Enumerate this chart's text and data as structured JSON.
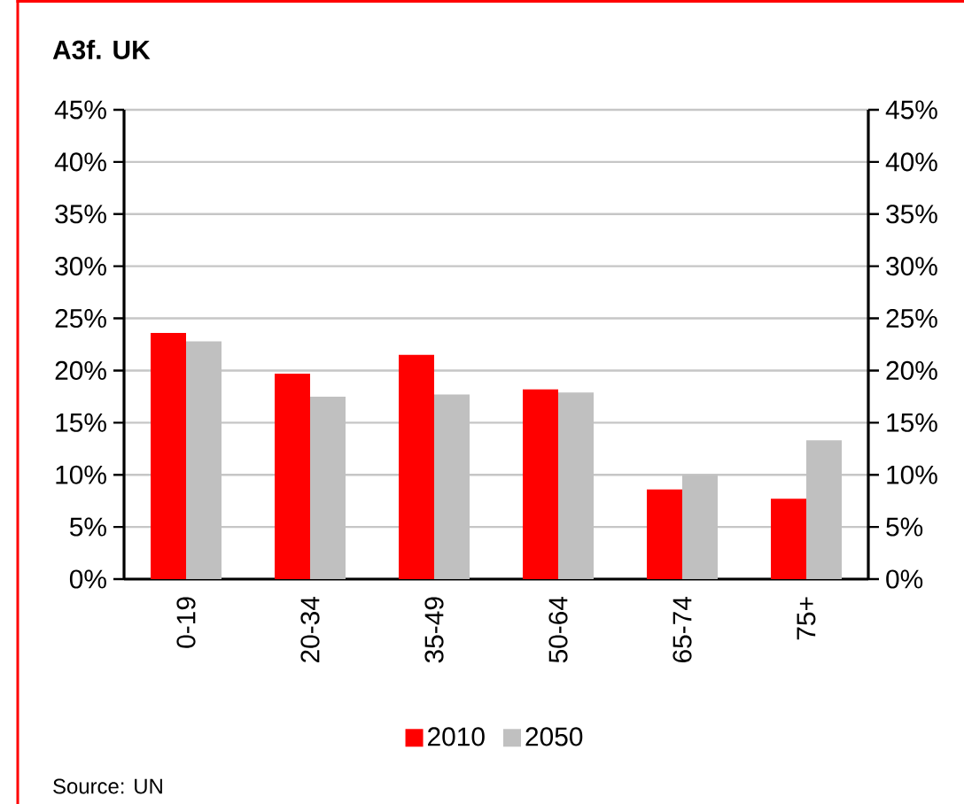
{
  "chart_data": {
    "type": "bar",
    "title": "A3f. UK",
    "categories": [
      "0-19",
      "20-34",
      "35-49",
      "50-64",
      "65-74",
      "75+"
    ],
    "series": [
      {
        "name": "2010",
        "color": "#ff0000",
        "values": [
          23.6,
          19.7,
          21.5,
          18.2,
          8.6,
          7.7
        ]
      },
      {
        "name": "2050",
        "color": "#c0c0c0",
        "values": [
          22.8,
          17.5,
          17.7,
          17.9,
          10.0,
          13.3
        ]
      }
    ],
    "ylim": [
      0,
      45
    ],
    "yticks": [
      {
        "value": 0,
        "label": "0%"
      },
      {
        "value": 5,
        "label": "5%"
      },
      {
        "value": 10,
        "label": "10%"
      },
      {
        "value": 15,
        "label": "15%"
      },
      {
        "value": 20,
        "label": "20%"
      },
      {
        "value": 25,
        "label": "25%"
      },
      {
        "value": 30,
        "label": "30%"
      },
      {
        "value": 35,
        "label": "35%"
      },
      {
        "value": 40,
        "label": "40%"
      },
      {
        "value": 45,
        "label": "45%"
      }
    ],
    "y2lim": [
      0,
      45
    ],
    "y2ticks": [
      {
        "value": 0,
        "label": "0%"
      },
      {
        "value": 5,
        "label": "5%"
      },
      {
        "value": 10,
        "label": "10%"
      },
      {
        "value": 15,
        "label": "15%"
      },
      {
        "value": 20,
        "label": "20%"
      },
      {
        "value": 25,
        "label": "25%"
      },
      {
        "value": 30,
        "label": "30%"
      },
      {
        "value": 35,
        "label": "35%"
      },
      {
        "value": 40,
        "label": "40%"
      },
      {
        "value": 45,
        "label": "45%"
      }
    ],
    "grid": "y",
    "legend": "bottom",
    "annotations": [
      "Source: UN"
    ]
  }
}
